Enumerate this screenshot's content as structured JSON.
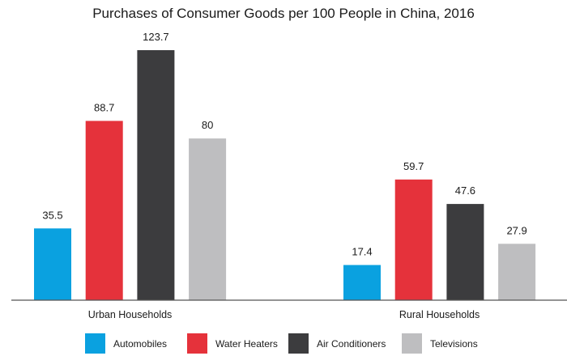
{
  "chart_data": {
    "type": "bar",
    "title": "Purchases of Consumer Goods per 100 People in China, 2016",
    "categories": [
      "Urban Households",
      "Rural Households"
    ],
    "series": [
      {
        "name": "Automobiles",
        "color": "#0aa1e0",
        "values": [
          35.5,
          17.4
        ],
        "labels": [
          "35.5",
          "17.4"
        ]
      },
      {
        "name": "Water Heaters",
        "color": "#e5323b",
        "values": [
          88.7,
          59.7
        ],
        "labels": [
          "88.7",
          "59.7"
        ]
      },
      {
        "name": "Air Conditioners",
        "color": "#3c3c3e",
        "values": [
          123.7,
          47.6
        ],
        "labels": [
          "123.7",
          "47.6"
        ]
      },
      {
        "name": "Televisions",
        "color": "#bebec0",
        "values": [
          80,
          27.9
        ],
        "labels": [
          "80",
          "27.9"
        ]
      }
    ],
    "ylim": [
      0,
      123.7
    ],
    "grid": false,
    "legend_position": "bottom",
    "xlabel": "",
    "ylabel": ""
  }
}
